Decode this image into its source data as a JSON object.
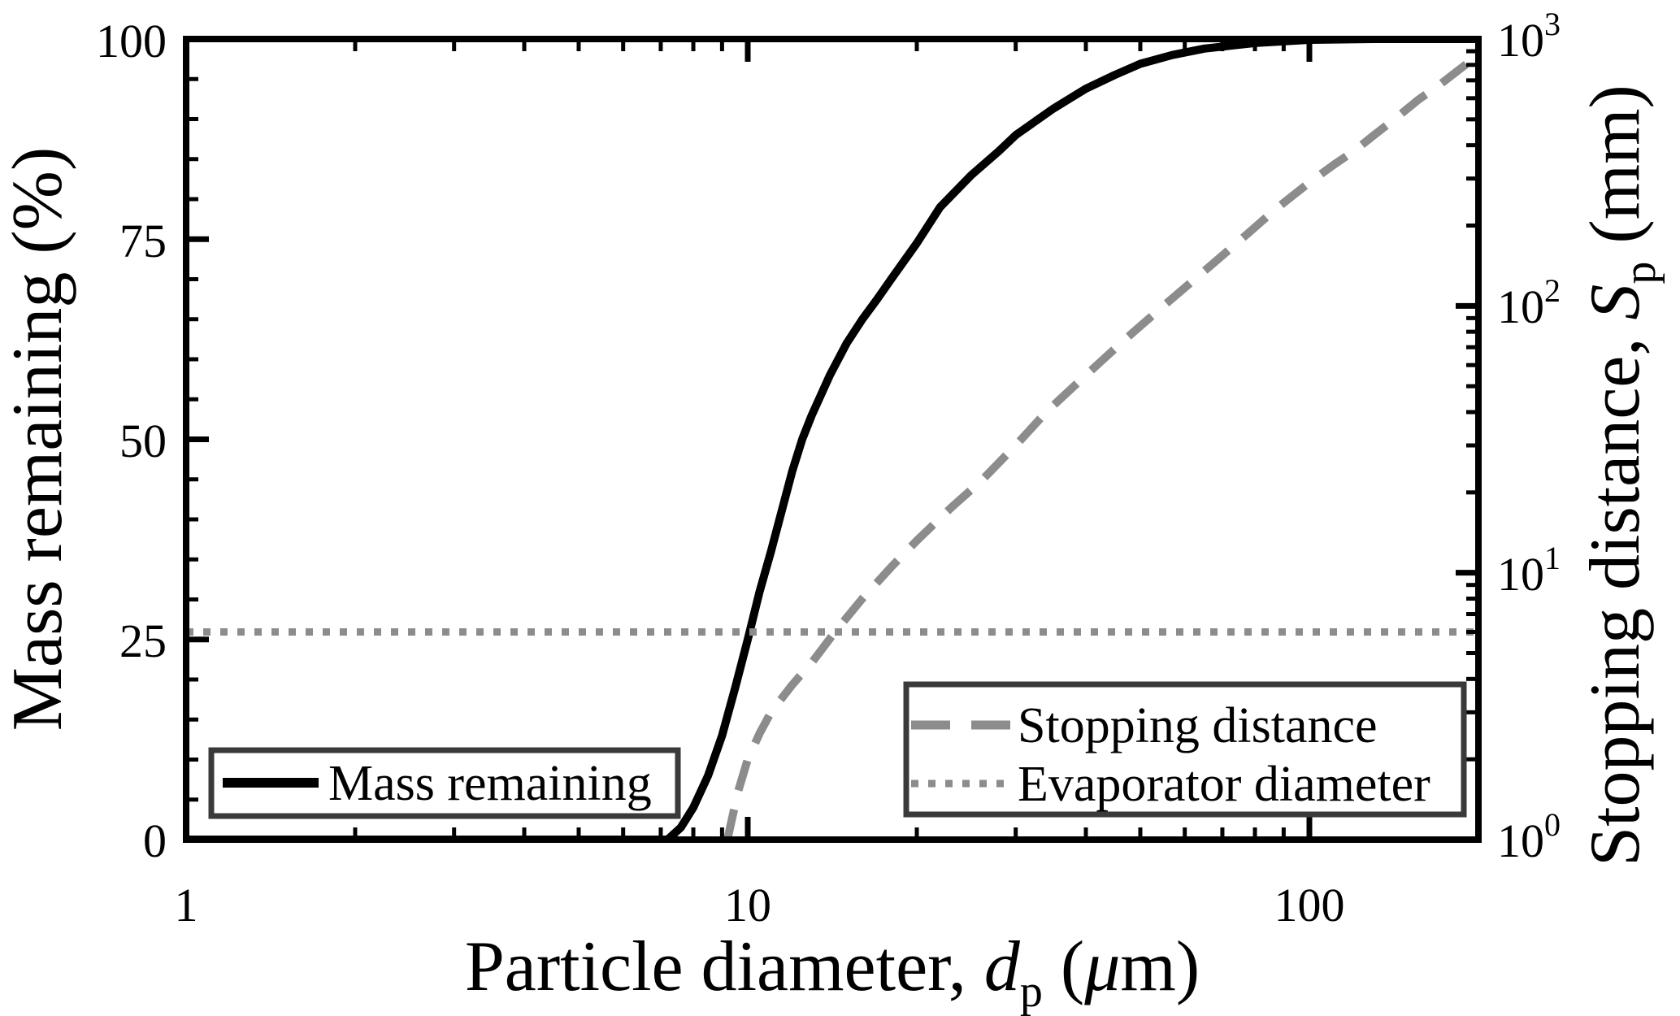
{
  "figure": {
    "background": "#ffffff",
    "frame_color": "#000000",
    "legend_border_color": "#3a3a3a"
  },
  "legend_left": {
    "entries": [
      {
        "label": "Mass remaining",
        "line_style": "solid",
        "color": "#000000"
      }
    ]
  },
  "legend_right": {
    "entries": [
      {
        "label": "Stopping distance",
        "line_style": "dashed",
        "color": "#8c8c8c"
      },
      {
        "label": "Evaporator diameter",
        "line_style": "dotted",
        "color": "#8c8c8c"
      }
    ]
  },
  "chart_data": {
    "type": "line",
    "grid": "off",
    "legend_positions": [
      "lower-left",
      "lower-right"
    ],
    "x_axis": {
      "label_prefix": "Particle diameter, ",
      "label_symbol": "d",
      "label_symbol_sub": "p",
      "label_open": " (",
      "label_mu": "μ",
      "label_close": "m)",
      "scale": "log",
      "min": 1,
      "max": 200,
      "major_ticks": [
        1,
        10,
        100
      ],
      "tick_labels": [
        "1",
        "10",
        "100"
      ]
    },
    "y_left": {
      "label": "Mass remaining (%)",
      "scale": "linear",
      "min": 0,
      "max": 100,
      "major_tick_step": 25,
      "minor_tick_step": 5,
      "tick_labels": [
        "0",
        "25",
        "50",
        "75",
        "100"
      ]
    },
    "y_right": {
      "label_prefix": "Stopping distance, ",
      "label_symbol": "S",
      "label_symbol_sub": "p",
      "label_suffix": " (mm)",
      "scale": "log",
      "min": 1,
      "max": 1000,
      "ticks": [
        {
          "base": "10",
          "exp": "0"
        },
        {
          "base": "10",
          "exp": "1"
        },
        {
          "base": "10",
          "exp": "2"
        },
        {
          "base": "10",
          "exp": "3"
        }
      ]
    },
    "series": [
      {
        "name": "Mass remaining",
        "axis": "left",
        "style": "solid",
        "color": "#000000",
        "units": [
          "µm",
          "%"
        ],
        "points": [
          [
            1,
            0
          ],
          [
            3,
            0
          ],
          [
            5,
            0
          ],
          [
            6.5,
            0
          ],
          [
            7.2,
            0
          ],
          [
            7.6,
            1.5
          ],
          [
            8,
            4
          ],
          [
            8.5,
            8
          ],
          [
            9,
            13
          ],
          [
            9.5,
            19
          ],
          [
            10,
            25
          ],
          [
            10.5,
            31
          ],
          [
            11,
            36
          ],
          [
            12,
            46
          ],
          [
            12.5,
            50
          ],
          [
            13,
            53
          ],
          [
            14,
            58
          ],
          [
            15,
            62
          ],
          [
            16,
            65
          ],
          [
            17,
            67.5
          ],
          [
            18,
            70
          ],
          [
            20,
            74.5
          ],
          [
            22,
            79
          ],
          [
            25,
            83
          ],
          [
            28,
            86
          ],
          [
            30,
            88
          ],
          [
            35,
            91.3
          ],
          [
            40,
            93.8
          ],
          [
            45,
            95.5
          ],
          [
            50,
            96.9
          ],
          [
            57,
            98
          ],
          [
            65,
            98.8
          ],
          [
            80,
            99.5
          ],
          [
            100,
            99.9
          ],
          [
            130,
            100
          ],
          [
            200,
            100
          ]
        ]
      },
      {
        "name": "Stopping distance",
        "axis": "right",
        "style": "dashed",
        "color": "#8c8c8c",
        "units": [
          "µm",
          "mm"
        ],
        "points": [
          [
            9.2,
            1.0
          ],
          [
            9.6,
            1.5
          ],
          [
            10,
            2.0
          ],
          [
            10.5,
            2.5
          ],
          [
            11,
            3.0
          ],
          [
            12,
            3.8
          ],
          [
            12.5,
            4.2
          ],
          [
            13,
            4.6
          ],
          [
            14.3,
            6.0
          ],
          [
            16,
            8.0
          ],
          [
            18,
            10.5
          ],
          [
            20,
            13.2
          ],
          [
            23,
            17.5
          ],
          [
            26,
            22
          ],
          [
            30,
            30
          ],
          [
            34,
            40
          ],
          [
            40,
            55
          ],
          [
            47,
            75
          ],
          [
            55,
            100
          ],
          [
            65,
            135
          ],
          [
            75,
            175
          ],
          [
            87,
            230
          ],
          [
            100,
            290
          ],
          [
            111,
            340
          ],
          [
            120,
            380
          ],
          [
            131,
            440
          ],
          [
            145,
            520
          ],
          [
            156,
            590
          ],
          [
            170,
            670
          ],
          [
            186,
            776
          ],
          [
            200,
            870
          ]
        ]
      },
      {
        "name": "Evaporator diameter",
        "axis": "right",
        "style": "dotted",
        "color": "#8c8c8c",
        "units": [
          "µm",
          "mm"
        ],
        "constant_value_mm": 6
      }
    ]
  }
}
